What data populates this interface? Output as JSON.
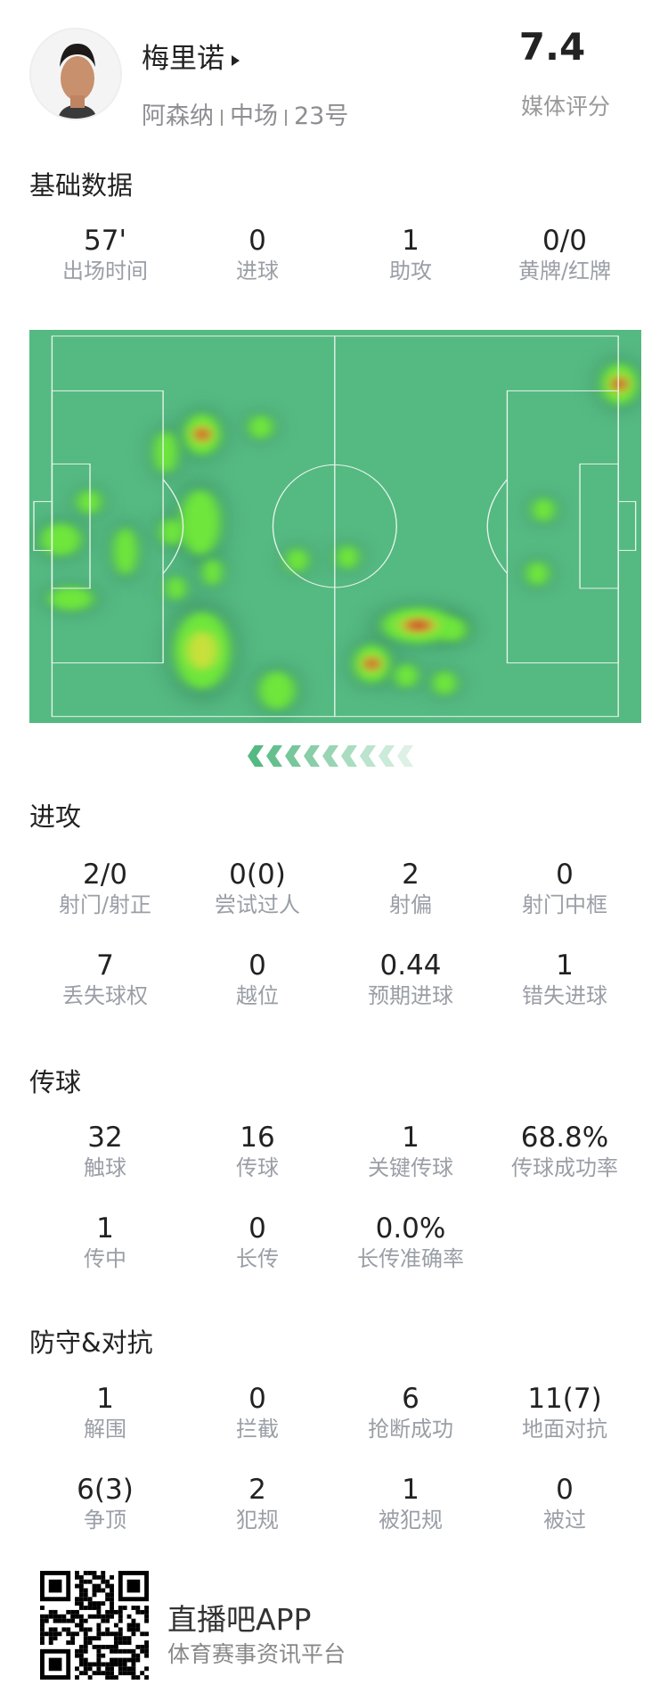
{
  "player": {
    "name": "梅里诺",
    "team": "阿森纳",
    "position": "中场",
    "number": "23号",
    "rating": "7.4",
    "rating_label": "媒体评分"
  },
  "basic": {
    "title": "基础数据",
    "stats": [
      {
        "value": "57'",
        "label": "出场时间"
      },
      {
        "value": "0",
        "label": "进球"
      },
      {
        "value": "1",
        "label": "助攻"
      },
      {
        "value": "0/0",
        "label": "黄牌/红牌"
      }
    ]
  },
  "attack": {
    "title": "进攻",
    "stats": [
      {
        "value": "2/0",
        "label": "射门/射正"
      },
      {
        "value": "0(0)",
        "label": "尝试过人"
      },
      {
        "value": "2",
        "label": "射偏"
      },
      {
        "value": "0",
        "label": "射门中框"
      },
      {
        "value": "7",
        "label": "丢失球权"
      },
      {
        "value": "0",
        "label": "越位"
      },
      {
        "value": "0.44",
        "label": "预期进球"
      },
      {
        "value": "1",
        "label": "错失进球"
      }
    ]
  },
  "passing": {
    "title": "传球",
    "stats": [
      {
        "value": "32",
        "label": "触球"
      },
      {
        "value": "16",
        "label": "传球"
      },
      {
        "value": "1",
        "label": "关键传球"
      },
      {
        "value": "68.8%",
        "label": "传球成功率"
      },
      {
        "value": "1",
        "label": "传中"
      },
      {
        "value": "0",
        "label": "长传"
      },
      {
        "value": "0.0%",
        "label": "长传准确率"
      }
    ]
  },
  "defense": {
    "title": "防守&对抗",
    "stats": [
      {
        "value": "1",
        "label": "解围"
      },
      {
        "value": "0",
        "label": "拦截"
      },
      {
        "value": "6",
        "label": "抢断成功"
      },
      {
        "value": "11(7)",
        "label": "地面对抗"
      },
      {
        "value": "6(3)",
        "label": "争顶"
      },
      {
        "value": "2",
        "label": "犯规"
      },
      {
        "value": "1",
        "label": "被犯规"
      },
      {
        "value": "0",
        "label": "被过"
      }
    ]
  },
  "heatmap": {
    "pitch_color": "#55b982",
    "attack_direction": "left",
    "icons": [
      "chevron-left-icon"
    ]
  },
  "footer": {
    "app_name": "直播吧APP",
    "slogan": "体育赛事资讯平台"
  }
}
